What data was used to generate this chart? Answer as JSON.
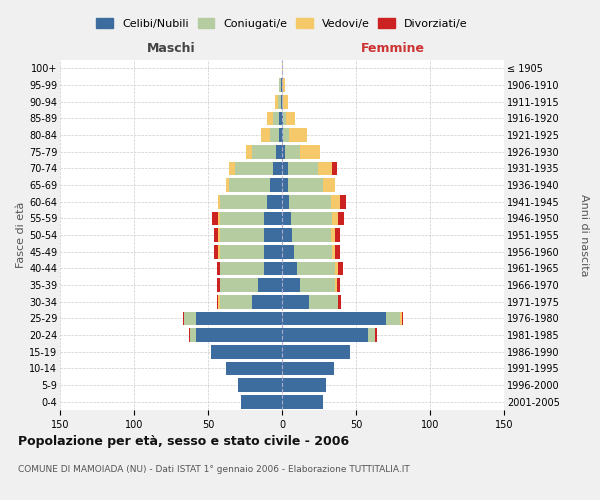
{
  "age_groups": [
    "0-4",
    "5-9",
    "10-14",
    "15-19",
    "20-24",
    "25-29",
    "30-34",
    "35-39",
    "40-44",
    "45-49",
    "50-54",
    "55-59",
    "60-64",
    "65-69",
    "70-74",
    "75-79",
    "80-84",
    "85-89",
    "90-94",
    "95-99",
    "100+"
  ],
  "birth_years": [
    "2001-2005",
    "1996-2000",
    "1991-1995",
    "1986-1990",
    "1981-1985",
    "1976-1980",
    "1971-1975",
    "1966-1970",
    "1961-1965",
    "1956-1960",
    "1951-1955",
    "1946-1950",
    "1941-1945",
    "1936-1940",
    "1931-1935",
    "1926-1930",
    "1921-1925",
    "1916-1920",
    "1911-1915",
    "1906-1910",
    "≤ 1905"
  ],
  "males": {
    "celibi": [
      28,
      30,
      38,
      48,
      58,
      58,
      20,
      16,
      12,
      12,
      12,
      12,
      10,
      8,
      6,
      4,
      2,
      2,
      1,
      1,
      0
    ],
    "coniugati": [
      0,
      0,
      0,
      0,
      4,
      8,
      22,
      26,
      30,
      30,
      30,
      30,
      32,
      28,
      26,
      16,
      6,
      4,
      2,
      1,
      0
    ],
    "vedovi": [
      0,
      0,
      0,
      0,
      0,
      0,
      1,
      0,
      0,
      1,
      1,
      1,
      1,
      2,
      4,
      4,
      6,
      4,
      2,
      0,
      0
    ],
    "divorziati": [
      0,
      0,
      0,
      0,
      1,
      1,
      1,
      2,
      2,
      3,
      3,
      4,
      0,
      0,
      0,
      0,
      0,
      0,
      0,
      0,
      0
    ]
  },
  "females": {
    "nubili": [
      28,
      30,
      35,
      46,
      58,
      70,
      18,
      12,
      10,
      8,
      7,
      6,
      5,
      4,
      4,
      2,
      1,
      1,
      0,
      0,
      0
    ],
    "coniugate": [
      0,
      0,
      0,
      0,
      5,
      10,
      20,
      24,
      26,
      26,
      26,
      28,
      28,
      24,
      20,
      10,
      4,
      2,
      1,
      0,
      0
    ],
    "vedove": [
      0,
      0,
      0,
      0,
      0,
      1,
      0,
      1,
      2,
      2,
      3,
      4,
      6,
      8,
      10,
      14,
      12,
      6,
      3,
      2,
      1
    ],
    "divorziate": [
      0,
      0,
      0,
      0,
      1,
      1,
      2,
      2,
      3,
      3,
      3,
      4,
      4,
      0,
      3,
      0,
      0,
      0,
      0,
      0,
      0
    ]
  },
  "colors": {
    "celibi_nubili": "#3d6d9e",
    "coniugati": "#b5cca0",
    "vedovi": "#f5c96a",
    "divorziati": "#cc2222"
  },
  "xlim": 150,
  "title": "Popolazione per età, sesso e stato civile - 2006",
  "subtitle": "COMUNE DI MAMOIADA (NU) - Dati ISTAT 1° gennaio 2006 - Elaborazione TUTTITALIA.IT",
  "ylabel_left": "Fasce di età",
  "ylabel_right": "Anni di nascita",
  "xlabel_maschi": "Maschi",
  "xlabel_femmine": "Femmine",
  "background_color": "#f0f0f0",
  "plot_bg_color": "#ffffff"
}
